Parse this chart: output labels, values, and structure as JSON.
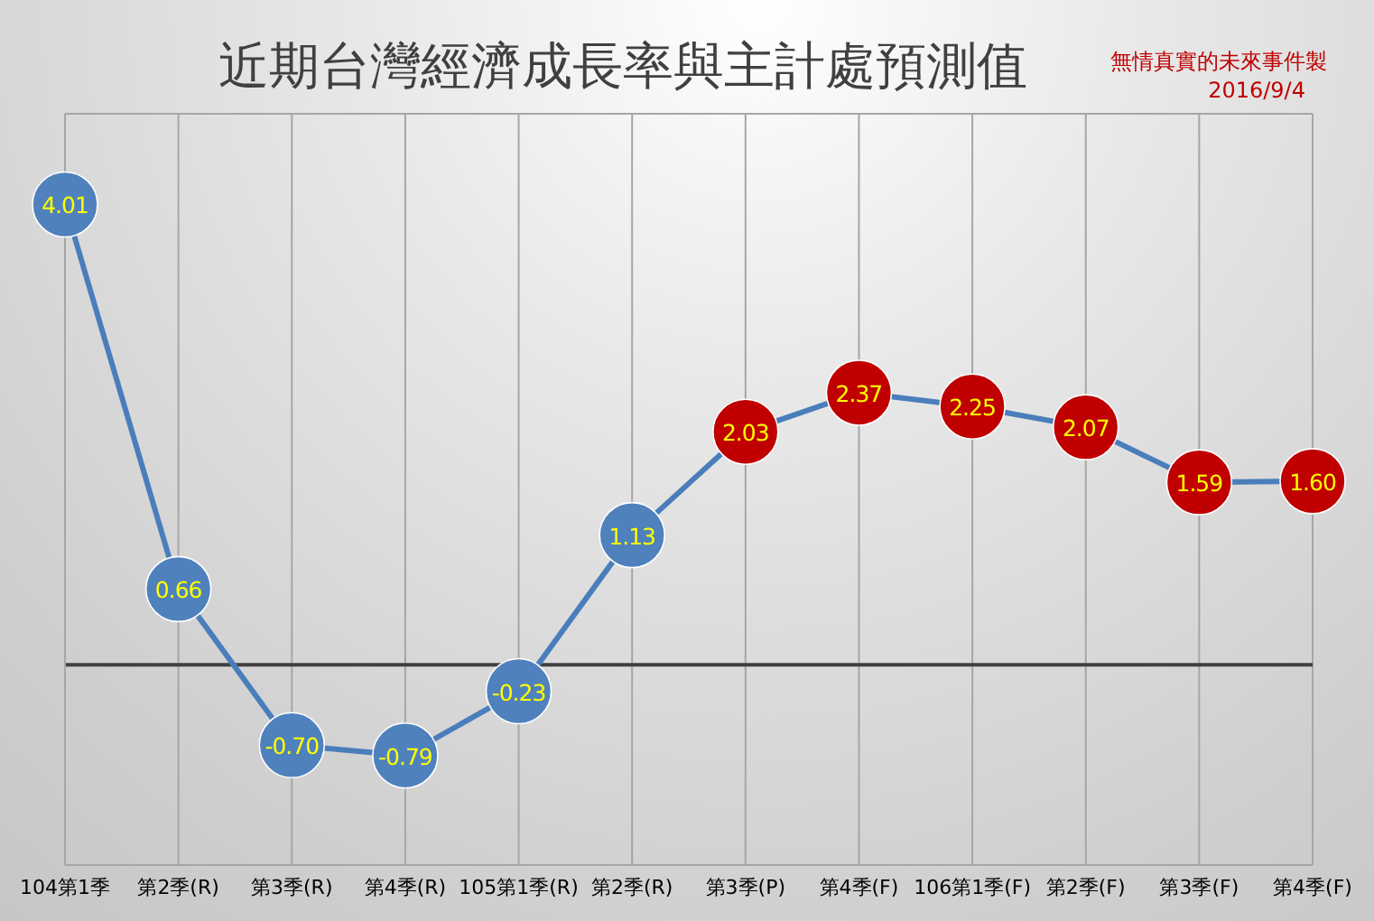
{
  "chart_data": {
    "type": "line",
    "title": "近期台灣經濟成長率與主計處預測值",
    "annotations": [
      "無情真實的未來事件製",
      "2016/9/4"
    ],
    "categories": [
      "104第1季",
      "第2季(R)",
      "第3季(R)",
      "第4季(R)",
      "105第1季(R)",
      "第2季(R)",
      "第3季(P)",
      "第4季(F)",
      "106第1季(F)",
      "第2季(F)",
      "第3季(F)",
      "第4季(F)"
    ],
    "series": [
      {
        "color": "#4a7ebb",
        "colors": [
          "#4f81bd",
          "#4f81bd",
          "#4f81bd",
          "#4f81bd",
          "#4f81bd",
          "#4f81bd",
          "#c00000",
          "#c00000",
          "#c00000",
          "#c00000",
          "#c00000",
          "#c00000"
        ],
        "values": [
          4.01,
          0.66,
          -0.7,
          -0.79,
          -0.23,
          1.13,
          2.03,
          2.37,
          2.25,
          2.07,
          1.59,
          1.6
        ],
        "value_labels": [
          "4.01",
          "0.66",
          "-0.70",
          "-0.79",
          "-0.23",
          "1.13",
          "2.03",
          "2.37",
          "2.25",
          "2.07",
          "1.59",
          "1.60"
        ]
      }
    ],
    "grid": true,
    "marker": "circle",
    "tick_labels": "x",
    "ref_lines": [
      {
        "axis": "y",
        "value": 0,
        "color": "#404040"
      }
    ]
  }
}
